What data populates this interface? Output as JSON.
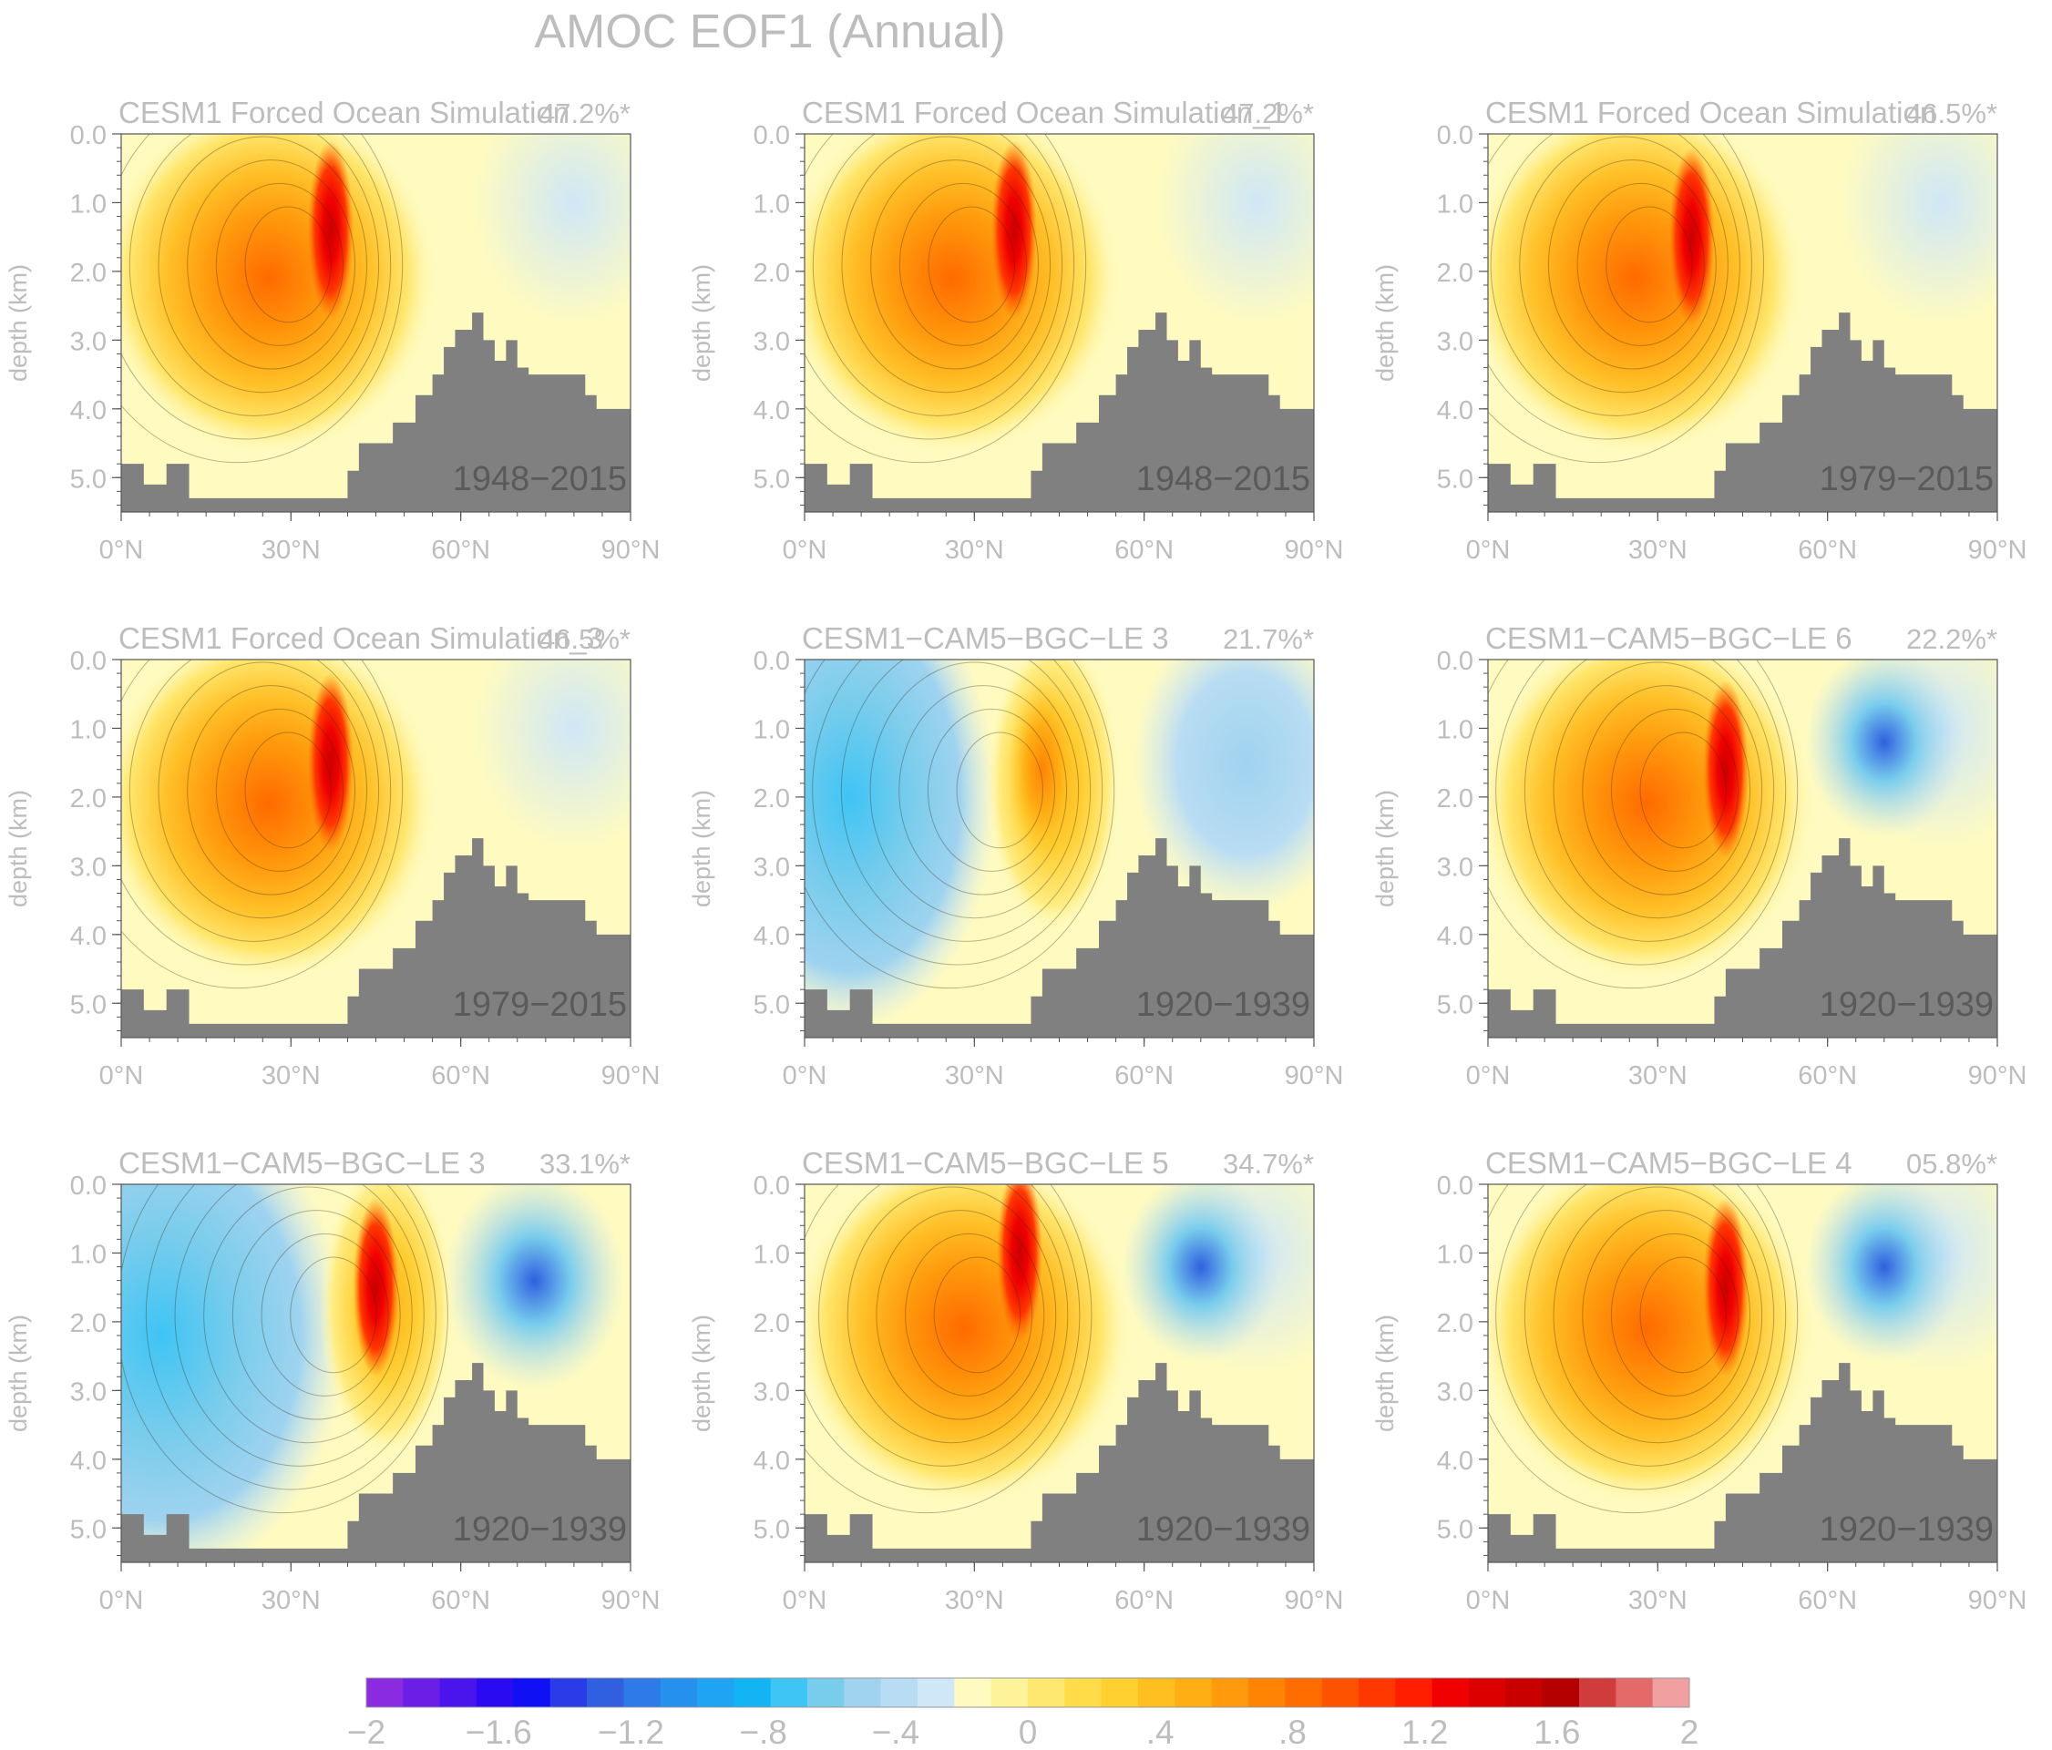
{
  "figure": {
    "title": "AMOC EOF1 (Annual)",
    "ylabel": "depth (km)",
    "xticks": [
      "0°N",
      "30°N",
      "60°N",
      "90°N"
    ],
    "yticks": [
      "0.0",
      "1.0",
      "2.0",
      "3.0",
      "4.0",
      "5.0"
    ],
    "colorbar": {
      "tick_labels": [
        "−2",
        "−1.6",
        "−1.2",
        "−.8",
        "−.4",
        "0",
        ".4",
        ".8",
        "1.2",
        "1.6",
        "2"
      ],
      "colors": [
        "#8a2be2",
        "#6a1ee6",
        "#4a14ec",
        "#2a0af0",
        "#1010f4",
        "#2a3ce8",
        "#3060e0",
        "#2d7ae8",
        "#2590ee",
        "#1ea4f2",
        "#12b4f4",
        "#3ec4f5",
        "#78ccec",
        "#9fd3ef",
        "#b8dcf3",
        "#cfe7f7",
        "#fffbc0",
        "#fff39a",
        "#ffe870",
        "#ffdc48",
        "#ffd030",
        "#ffbf20",
        "#ffae14",
        "#ff9a0c",
        "#ff8404",
        "#ff6c00",
        "#ff5200",
        "#ff3800",
        "#ff1e00",
        "#f00000",
        "#dc0000",
        "#c80000",
        "#b40000",
        "#d03c3c",
        "#e46a6a",
        "#f0a0a0"
      ]
    }
  },
  "panels": [
    {
      "name": "CESM1 Forced Ocean Simulation",
      "pct": "47.2%*",
      "period": "1948−2015"
    },
    {
      "name": "CESM1 Forced Ocean Simulation_1",
      "pct": "47.2%*",
      "period": "1948−2015"
    },
    {
      "name": "CESM1 Forced Ocean Simulation",
      "pct": "46.5%*",
      "period": "1979−2015"
    },
    {
      "name": "CESM1 Forced Ocean Simulation_3",
      "pct": "46.5%*",
      "period": "1979−2015"
    },
    {
      "name": "CESM1−CAM5−BGC−LE 3",
      "pct": "21.7%*",
      "period": "1920−1939"
    },
    {
      "name": "CESM1−CAM5−BGC−LE 6",
      "pct": "22.2%*",
      "period": "1920−1939"
    },
    {
      "name": "CESM1−CAM5−BGC−LE 3",
      "pct": "33.1%*",
      "period": "1920−1939"
    },
    {
      "name": "CESM1−CAM5−BGC−LE 5",
      "pct": "34.7%*",
      "period": "1920−1939"
    },
    {
      "name": "CESM1−CAM5−BGC−LE 4",
      "pct": "05.8%*",
      "period": "1920−1939"
    }
  ],
  "chart_data": {
    "type": "heatmap",
    "title": "AMOC EOF1 (Annual)",
    "ylabel": "depth (km)",
    "xlabel": "",
    "x_ticks": [
      "0°N",
      "30°N",
      "60°N",
      "90°N"
    ],
    "y_ticks": [
      "0.0",
      "1.0",
      "2.0",
      "3.0",
      "4.0",
      "5.0"
    ],
    "xlim": [
      0,
      90
    ],
    "ylim": [
      0,
      5.5
    ],
    "colorbar_range": [
      -2,
      2
    ],
    "panels": [
      {
        "title": "CESM1 Forced Ocean Simulation",
        "variance_explained": "47.2%*",
        "period": "1948−2015",
        "max_value": 1.4,
        "max_location": [
          37,
          1.4
        ],
        "min_value": -0.2
      },
      {
        "title": "CESM1 Forced Ocean Simulation_1",
        "variance_explained": "47.2%*",
        "period": "1948−2015",
        "max_value": 1.4,
        "max_location": [
          37,
          1.4
        ],
        "min_value": -0.2
      },
      {
        "title": "CESM1 Forced Ocean Simulation",
        "variance_explained": "46.5%*",
        "period": "1979−2015",
        "max_value": 1.6,
        "max_location": [
          36,
          1.5
        ],
        "min_value": -0.2
      },
      {
        "title": "CESM1 Forced Ocean Simulation_3",
        "variance_explained": "46.5%*",
        "period": "1979−2015",
        "max_value": 1.6,
        "max_location": [
          37,
          1.5
        ],
        "min_value": -0.2
      },
      {
        "title": "CESM1−CAM5−BGC−LE 3",
        "variance_explained": "21.7%*",
        "period": "1920−1939",
        "max_value": 0.8,
        "max_location": [
          42,
          1.6
        ],
        "min_value": -0.4
      },
      {
        "title": "CESM1−CAM5−BGC−LE 6",
        "variance_explained": "22.2%*",
        "period": "1920−1939",
        "max_value": 1.8,
        "max_location": [
          42,
          1.6
        ],
        "min_value": -0.8
      },
      {
        "title": "CESM1−CAM5−BGC−LE 3",
        "variance_explained": "33.1%*",
        "period": "1920−1939",
        "max_value": 1.8,
        "max_location": [
          45,
          1.5
        ],
        "min_value": -1.0
      },
      {
        "title": "CESM1−CAM5−BGC−LE 5",
        "variance_explained": "34.7%*",
        "period": "1920−1939",
        "max_value": 1.6,
        "max_location": [
          38,
          1.0
        ],
        "min_value": -1.0
      },
      {
        "title": "CESM1−CAM5−BGC−LE 4",
        "variance_explained": "05.8%*",
        "period": "1920−1939",
        "max_value": 1.8,
        "max_location": [
          42,
          1.5
        ],
        "min_value": -0.8
      }
    ]
  }
}
